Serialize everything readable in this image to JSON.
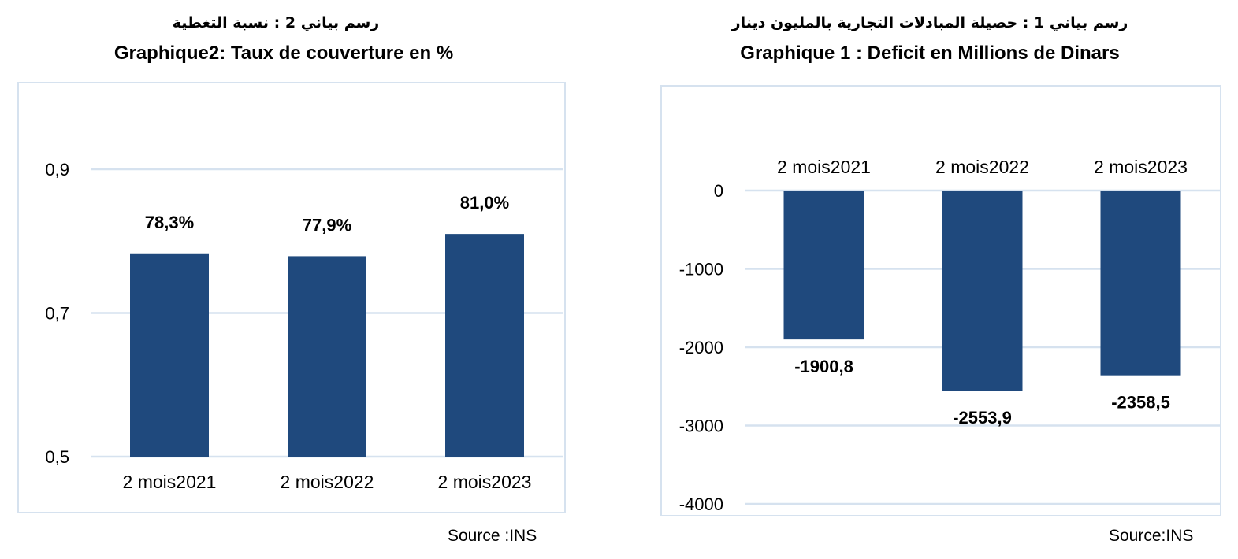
{
  "charts": {
    "left": {
      "title_ar": "رسم بياني 2 : نسبة التغطية",
      "title_fr": "Graphique2: Taux de couverture en %",
      "source": "Source :INS"
    },
    "right": {
      "title_ar": "رسم بياني 1 : حصيلة المبادلات التجارية بالمليون دينار",
      "title_fr": "Graphique 1 : Deficit en Millions de Dinars",
      "source": "Source:INS"
    }
  },
  "colors": {
    "bar": "#1f497d",
    "grid": "#d6e2ef"
  },
  "chart_data": [
    {
      "type": "bar",
      "title": "Graphique2: Taux de couverture en %",
      "categories": [
        "2 mois2021",
        "2 mois2022",
        "2 mois2023"
      ],
      "values": [
        0.783,
        0.779,
        0.81
      ],
      "data_labels": [
        "78,3%",
        "77,9%",
        "81,0%"
      ],
      "ylim": [
        0.5,
        0.9
      ],
      "yticks": [
        0.5,
        0.7,
        0.9
      ],
      "ytick_labels": [
        "0,5",
        "0,7",
        "0,9"
      ],
      "grid": true
    },
    {
      "type": "bar",
      "title": "Graphique 1 : Deficit en Millions de Dinars",
      "categories": [
        "2 mois2021",
        "2 mois2022",
        "2 mois2023"
      ],
      "values": [
        -1900.8,
        -2553.9,
        -2358.5
      ],
      "data_labels": [
        "-1900,8",
        "-2553,9",
        "-2358,5"
      ],
      "ylim": [
        -4000,
        0
      ],
      "yticks": [
        0,
        -1000,
        -2000,
        -3000,
        -4000
      ],
      "ytick_labels": [
        "0",
        "-1000",
        "-2000",
        "-3000",
        "-4000"
      ],
      "grid": true
    }
  ]
}
